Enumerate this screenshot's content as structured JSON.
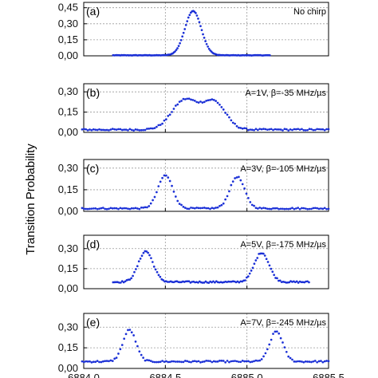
{
  "chart_data": {
    "type": "scatter",
    "ylabel": "Transition Probability",
    "x_tick_labels": [
      "6884,0",
      "6884,5",
      "6885,0",
      "6885,5"
    ],
    "xlim": [
      6884.0,
      6885.5
    ],
    "grid": true,
    "marker_color": "#1a2fd6",
    "panels": [
      {
        "label": "(a)",
        "annotation": "No chirp",
        "ylim": [
          0,
          0.5
        ],
        "y_ticks": [
          0.0,
          0.15,
          0.3,
          0.45
        ],
        "y_tick_labels": [
          "0,00",
          "0,15",
          "0,30",
          "0,45"
        ],
        "x_range": [
          6884.18,
          6885.14
        ],
        "baseline": 0.005,
        "peaks": [
          {
            "center": 6884.67,
            "height": 0.42,
            "width": 0.05
          }
        ],
        "noise": 0.002
      },
      {
        "label": "(b)",
        "annotation": "A=1V, β=-35 MHz/µs",
        "ylim": [
          0,
          0.36
        ],
        "y_ticks": [
          0.0,
          0.15,
          0.3
        ],
        "y_tick_labels": [
          "0,00",
          "0,15",
          "0,30"
        ],
        "x_range": [
          6883.99,
          6885.5
        ],
        "baseline": 0.02,
        "peaks": [
          {
            "center": 6884.62,
            "height": 0.24,
            "width": 0.08
          },
          {
            "center": 6884.8,
            "height": 0.22,
            "width": 0.07
          }
        ],
        "noise": 0.006
      },
      {
        "label": "(c)",
        "annotation": "A=3V, β=-105 MHz/µs",
        "ylim": [
          0,
          0.36
        ],
        "y_ticks": [
          0.0,
          0.15,
          0.3
        ],
        "y_tick_labels": [
          "0,00",
          "0,15",
          "0,30"
        ],
        "x_range": [
          6883.99,
          6885.5
        ],
        "baseline": 0.02,
        "peaks": [
          {
            "center": 6884.5,
            "height": 0.25,
            "width": 0.045
          },
          {
            "center": 6884.94,
            "height": 0.24,
            "width": 0.045
          }
        ],
        "noise": 0.005
      },
      {
        "label": "(d)",
        "annotation": "A=5V, β=-175 MHz/µs",
        "ylim": [
          0,
          0.4
        ],
        "y_ticks": [
          0.0,
          0.15,
          0.3
        ],
        "y_tick_labels": [
          "0,00",
          "0,15",
          "0,30"
        ],
        "x_range": [
          6884.18,
          6885.38
        ],
        "baseline": 0.05,
        "peaks": [
          {
            "center": 6884.38,
            "height": 0.28,
            "width": 0.045
          },
          {
            "center": 6885.09,
            "height": 0.27,
            "width": 0.045
          }
        ],
        "noise": 0.006
      },
      {
        "label": "(e)",
        "annotation": "A=7V, β=-245 MHz/µs",
        "ylim": [
          0,
          0.4
        ],
        "y_ticks": [
          0.0,
          0.15,
          0.3
        ],
        "y_tick_labels": [
          "0,00",
          "0,15",
          "0,30"
        ],
        "x_range": [
          6883.99,
          6885.5
        ],
        "baseline": 0.05,
        "peaks": [
          {
            "center": 6884.28,
            "height": 0.28,
            "width": 0.04
          },
          {
            "center": 6885.18,
            "height": 0.27,
            "width": 0.04
          }
        ],
        "noise": 0.006
      }
    ]
  }
}
